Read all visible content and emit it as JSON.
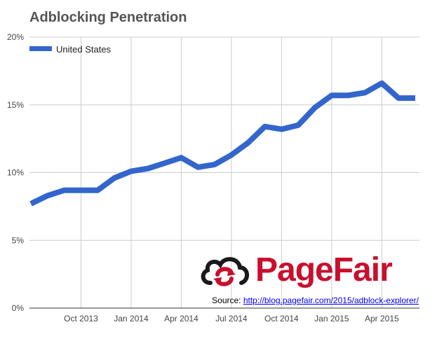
{
  "chart_data": {
    "type": "line",
    "title": "Adblocking Penetration",
    "xlabel": "",
    "ylabel": "",
    "x": [
      "2013-07",
      "2013-08",
      "2013-09",
      "2013-10",
      "2013-11",
      "2013-12",
      "2014-01",
      "2014-02",
      "2014-03",
      "2014-04",
      "2014-05",
      "2014-06",
      "2014-07",
      "2014-08",
      "2014-09",
      "2014-10",
      "2014-11",
      "2014-12",
      "2015-01",
      "2015-02",
      "2015-03",
      "2015-04",
      "2015-05",
      "2015-06"
    ],
    "x_tick_labels": [
      "Oct 2013",
      "Jan 2014",
      "Apr 2014",
      "Jul 2014",
      "Oct 2014",
      "Jan 2015",
      "Apr 2015"
    ],
    "y_tick_labels": [
      "0%",
      "5%",
      "10%",
      "15%",
      "20%"
    ],
    "ylim": [
      0,
      20
    ],
    "grid": true,
    "legend_position": "top-left",
    "series": [
      {
        "name": "United States",
        "color": "#3366cc",
        "values": [
          7.7,
          8.3,
          8.7,
          8.7,
          8.7,
          9.6,
          10.1,
          10.3,
          10.7,
          11.1,
          10.4,
          10.6,
          11.3,
          12.2,
          13.4,
          13.2,
          13.5,
          14.8,
          15.7,
          15.7,
          15.9,
          16.6,
          15.5,
          15.5
        ]
      }
    ]
  },
  "branding": {
    "logo_text": "PageFair",
    "logo_color": "#c8102e",
    "logo_icon": "cloud-cycle-icon"
  },
  "source": {
    "label": "Source: ",
    "link_text": "http://blog.pagefair.com/2015/adblock-explorer/"
  }
}
